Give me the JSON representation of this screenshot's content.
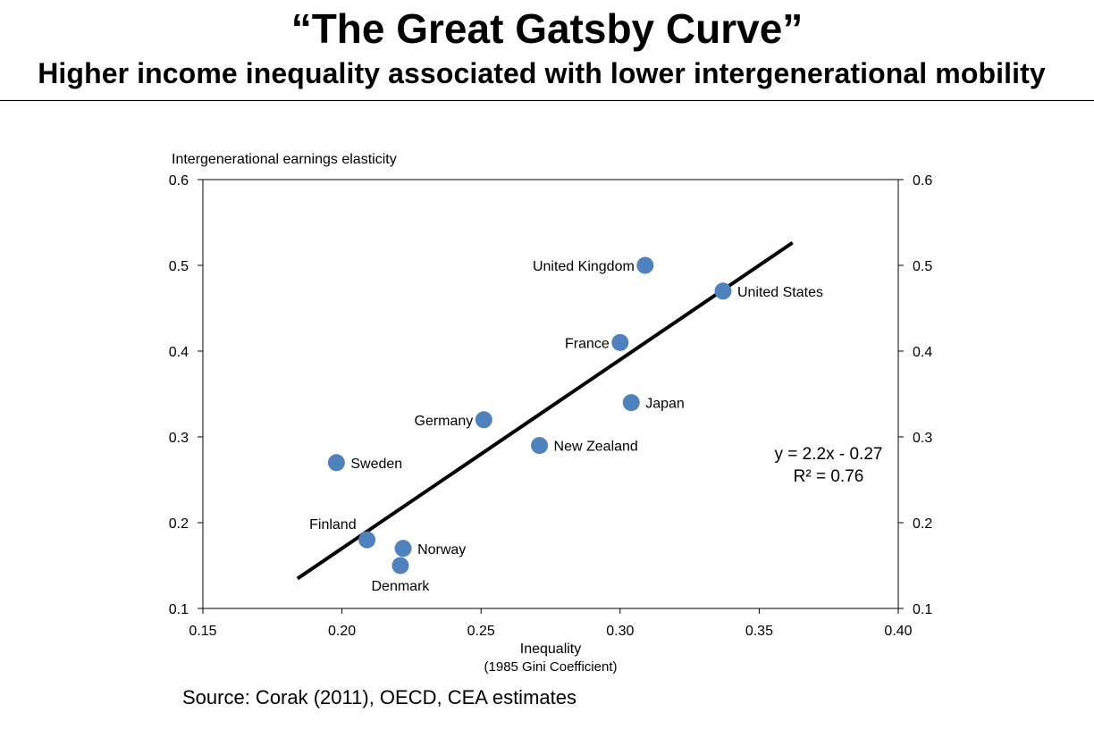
{
  "slide": {
    "title": "“The Great Gatsby Curve”",
    "subtitle": "Higher income inequality associated with lower intergenerational mobility",
    "source": "Source: Corak (2011), OECD, CEA estimates"
  },
  "colors": {
    "point": "#4f81bd",
    "trendline": "#000000",
    "axis": "#000000"
  },
  "chart_data": {
    "type": "scatter",
    "title": "",
    "ylabel": "Intergenerational earnings elasticity",
    "xlabel": "Inequality",
    "xlabel_sub": "(1985 Gini Coefficient)",
    "xlim": [
      0.15,
      0.4
    ],
    "ylim": [
      0.1,
      0.6
    ],
    "x_ticks": [
      0.15,
      0.2,
      0.25,
      0.3,
      0.35,
      0.4
    ],
    "x_tick_labels": [
      "0.15",
      "0.20",
      "0.25",
      "0.30",
      "0.35",
      "0.40"
    ],
    "y_ticks": [
      0.1,
      0.2,
      0.3,
      0.4,
      0.5,
      0.6
    ],
    "y_tick_labels": [
      "0.1",
      "0.2",
      "0.3",
      "0.4",
      "0.5",
      "0.6"
    ],
    "secondary_y_axis": true,
    "grid": false,
    "points": [
      {
        "label": "United Kingdom",
        "x": 0.309,
        "y": 0.5,
        "label_side": "left"
      },
      {
        "label": "United States",
        "x": 0.337,
        "y": 0.47,
        "label_side": "right"
      },
      {
        "label": "France",
        "x": 0.3,
        "y": 0.41,
        "label_side": "left"
      },
      {
        "label": "Japan",
        "x": 0.304,
        "y": 0.34,
        "label_side": "right"
      },
      {
        "label": "Germany",
        "x": 0.251,
        "y": 0.32,
        "label_side": "left"
      },
      {
        "label": "New Zealand",
        "x": 0.271,
        "y": 0.29,
        "label_side": "right"
      },
      {
        "label": "Sweden",
        "x": 0.198,
        "y": 0.27,
        "label_side": "right"
      },
      {
        "label": "Finland",
        "x": 0.209,
        "y": 0.18,
        "label_side": "above-left"
      },
      {
        "label": "Norway",
        "x": 0.222,
        "y": 0.17,
        "label_side": "right"
      },
      {
        "label": "Denmark",
        "x": 0.221,
        "y": 0.15,
        "label_side": "below"
      }
    ],
    "trendline": {
      "slope": 2.2,
      "intercept": -0.27,
      "x_range": [
        0.184,
        0.362
      ],
      "equation": "y = 2.2x - 0.27",
      "r_squared": "R² = 0.76"
    }
  }
}
